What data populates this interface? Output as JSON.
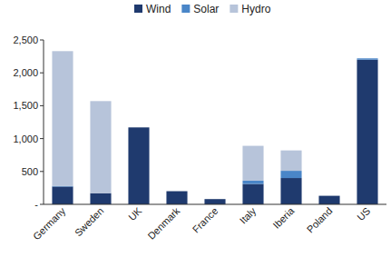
{
  "chart_data": {
    "type": "bar",
    "stacked": true,
    "legend": "top",
    "categories": [
      "Germany",
      "Sweden",
      "UK",
      "Denmark",
      "France",
      "Italy",
      "Iberia",
      "Poland",
      "US"
    ],
    "series": [
      {
        "name": "Wind",
        "color": "#1f3a6e",
        "values": [
          270,
          170,
          1170,
          200,
          80,
          310,
          400,
          130,
          2200
        ]
      },
      {
        "name": "Solar",
        "color": "#4a86c8",
        "values": [
          10,
          0,
          0,
          0,
          0,
          50,
          110,
          0,
          20
        ]
      },
      {
        "name": "Hydro",
        "color": "#b7c4da",
        "values": [
          2050,
          1400,
          0,
          0,
          0,
          530,
          310,
          0,
          0
        ]
      }
    ],
    "ylim": [
      0,
      2500
    ],
    "yticks": [
      {
        "value": 0,
        "label": "-"
      },
      500,
      {
        "value": 1000,
        "label": "1,000"
      },
      {
        "value": 1500,
        "label": "1,500"
      },
      {
        "value": 2000,
        "label": "2,000"
      },
      {
        "value": 2500,
        "label": "2,500"
      }
    ]
  }
}
